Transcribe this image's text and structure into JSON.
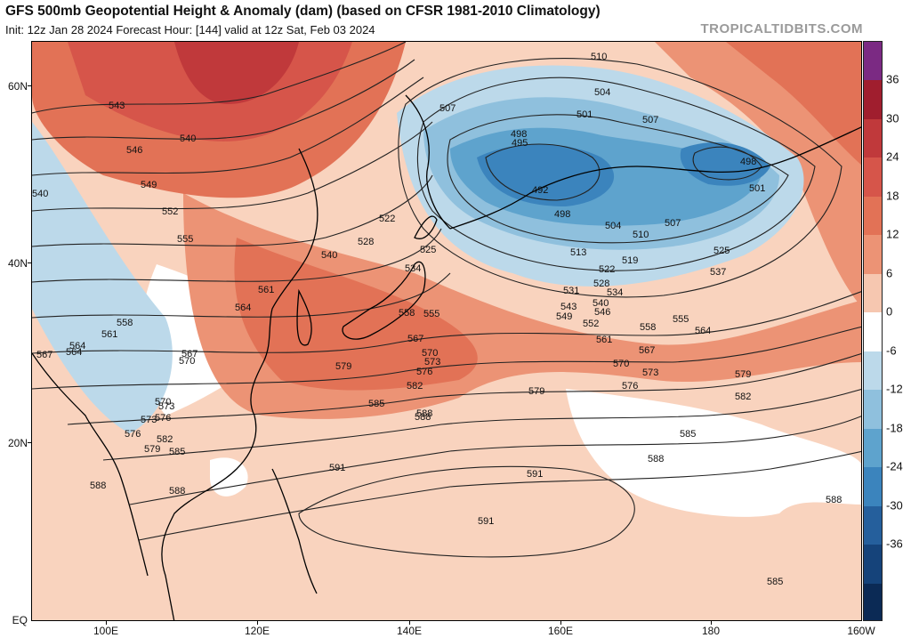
{
  "header": {
    "title": "GFS 500mb Geopotential Height & Anomaly (dam) (based on CFSR 1981-2010 Climatology)",
    "subtitle": "Init: 12z Jan 28 2024   Forecast Hour: [144]   valid at 12z Sat, Feb 03 2024",
    "source": "TROPICALTIDBITS.COM"
  },
  "axes": {
    "x_ticks": [
      "100E",
      "120E",
      "140E",
      "160E",
      "180",
      "160W"
    ],
    "y_ticks": [
      "60N",
      "40N",
      "20N",
      "EQ"
    ]
  },
  "colorbar": {
    "labels": [
      "36",
      "30",
      "24",
      "18",
      "12",
      "6",
      "0",
      "-6",
      "-12",
      "-18",
      "-24",
      "-30",
      "-36"
    ],
    "colors": [
      "#7b2a83",
      "#a01e2e",
      "#c0393b",
      "#d6554a",
      "#e27256",
      "#ec9375",
      "#f6c7b0",
      "#ffffff",
      "#bcd9ea",
      "#8fc0dd",
      "#5ea3cd",
      "#3b84bd",
      "#255f9c",
      "#15437a",
      "#0b2a55"
    ]
  },
  "contour_labels": [
    {
      "v": "510"
    },
    {
      "v": "504"
    },
    {
      "v": "507"
    },
    {
      "v": "501"
    },
    {
      "v": "507"
    },
    {
      "v": "498"
    },
    {
      "v": "495"
    },
    {
      "v": "492"
    },
    {
      "v": "498"
    },
    {
      "v": "498"
    },
    {
      "v": "501"
    },
    {
      "v": "504"
    },
    {
      "v": "507"
    },
    {
      "v": "510"
    },
    {
      "v": "513"
    },
    {
      "v": "519"
    },
    {
      "v": "522"
    },
    {
      "v": "525"
    },
    {
      "v": "525"
    },
    {
      "v": "537"
    },
    {
      "v": "528"
    },
    {
      "v": "534"
    },
    {
      "v": "531"
    },
    {
      "v": "543"
    },
    {
      "v": "540"
    },
    {
      "v": "546"
    },
    {
      "v": "549"
    },
    {
      "v": "552"
    },
    {
      "v": "555"
    },
    {
      "v": "558"
    },
    {
      "v": "564"
    },
    {
      "v": "561"
    },
    {
      "v": "567"
    },
    {
      "v": "570"
    },
    {
      "v": "573"
    },
    {
      "v": "576"
    },
    {
      "v": "579"
    },
    {
      "v": "579"
    },
    {
      "v": "582"
    },
    {
      "v": "585"
    },
    {
      "v": "588"
    },
    {
      "v": "591"
    },
    {
      "v": "591"
    },
    {
      "v": "591"
    },
    {
      "v": "588"
    },
    {
      "v": "588"
    },
    {
      "v": "585"
    },
    {
      "v": "588"
    },
    {
      "v": "543"
    },
    {
      "v": "546"
    },
    {
      "v": "540"
    },
    {
      "v": "549"
    },
    {
      "v": "552"
    },
    {
      "v": "555"
    },
    {
      "v": "540"
    },
    {
      "v": "522"
    },
    {
      "v": "528"
    },
    {
      "v": "534"
    },
    {
      "v": "558"
    },
    {
      "v": "555"
    },
    {
      "v": "561"
    },
    {
      "v": "564"
    },
    {
      "v": "567"
    },
    {
      "v": "570"
    },
    {
      "v": "573"
    },
    {
      "v": "576"
    },
    {
      "v": "564"
    },
    {
      "v": "567"
    },
    {
      "v": "570"
    },
    {
      "v": "573"
    },
    {
      "v": "576"
    },
    {
      "v": "579"
    },
    {
      "v": "582"
    },
    {
      "v": "585"
    },
    {
      "v": "588"
    },
    {
      "v": "561"
    },
    {
      "v": "558"
    },
    {
      "v": "564"
    },
    {
      "v": "567"
    },
    {
      "v": "570"
    },
    {
      "v": "573"
    },
    {
      "v": "576"
    },
    {
      "v": "579"
    },
    {
      "v": "582"
    },
    {
      "v": "585"
    },
    {
      "v": "588"
    },
    {
      "v": "540"
    }
  ]
}
